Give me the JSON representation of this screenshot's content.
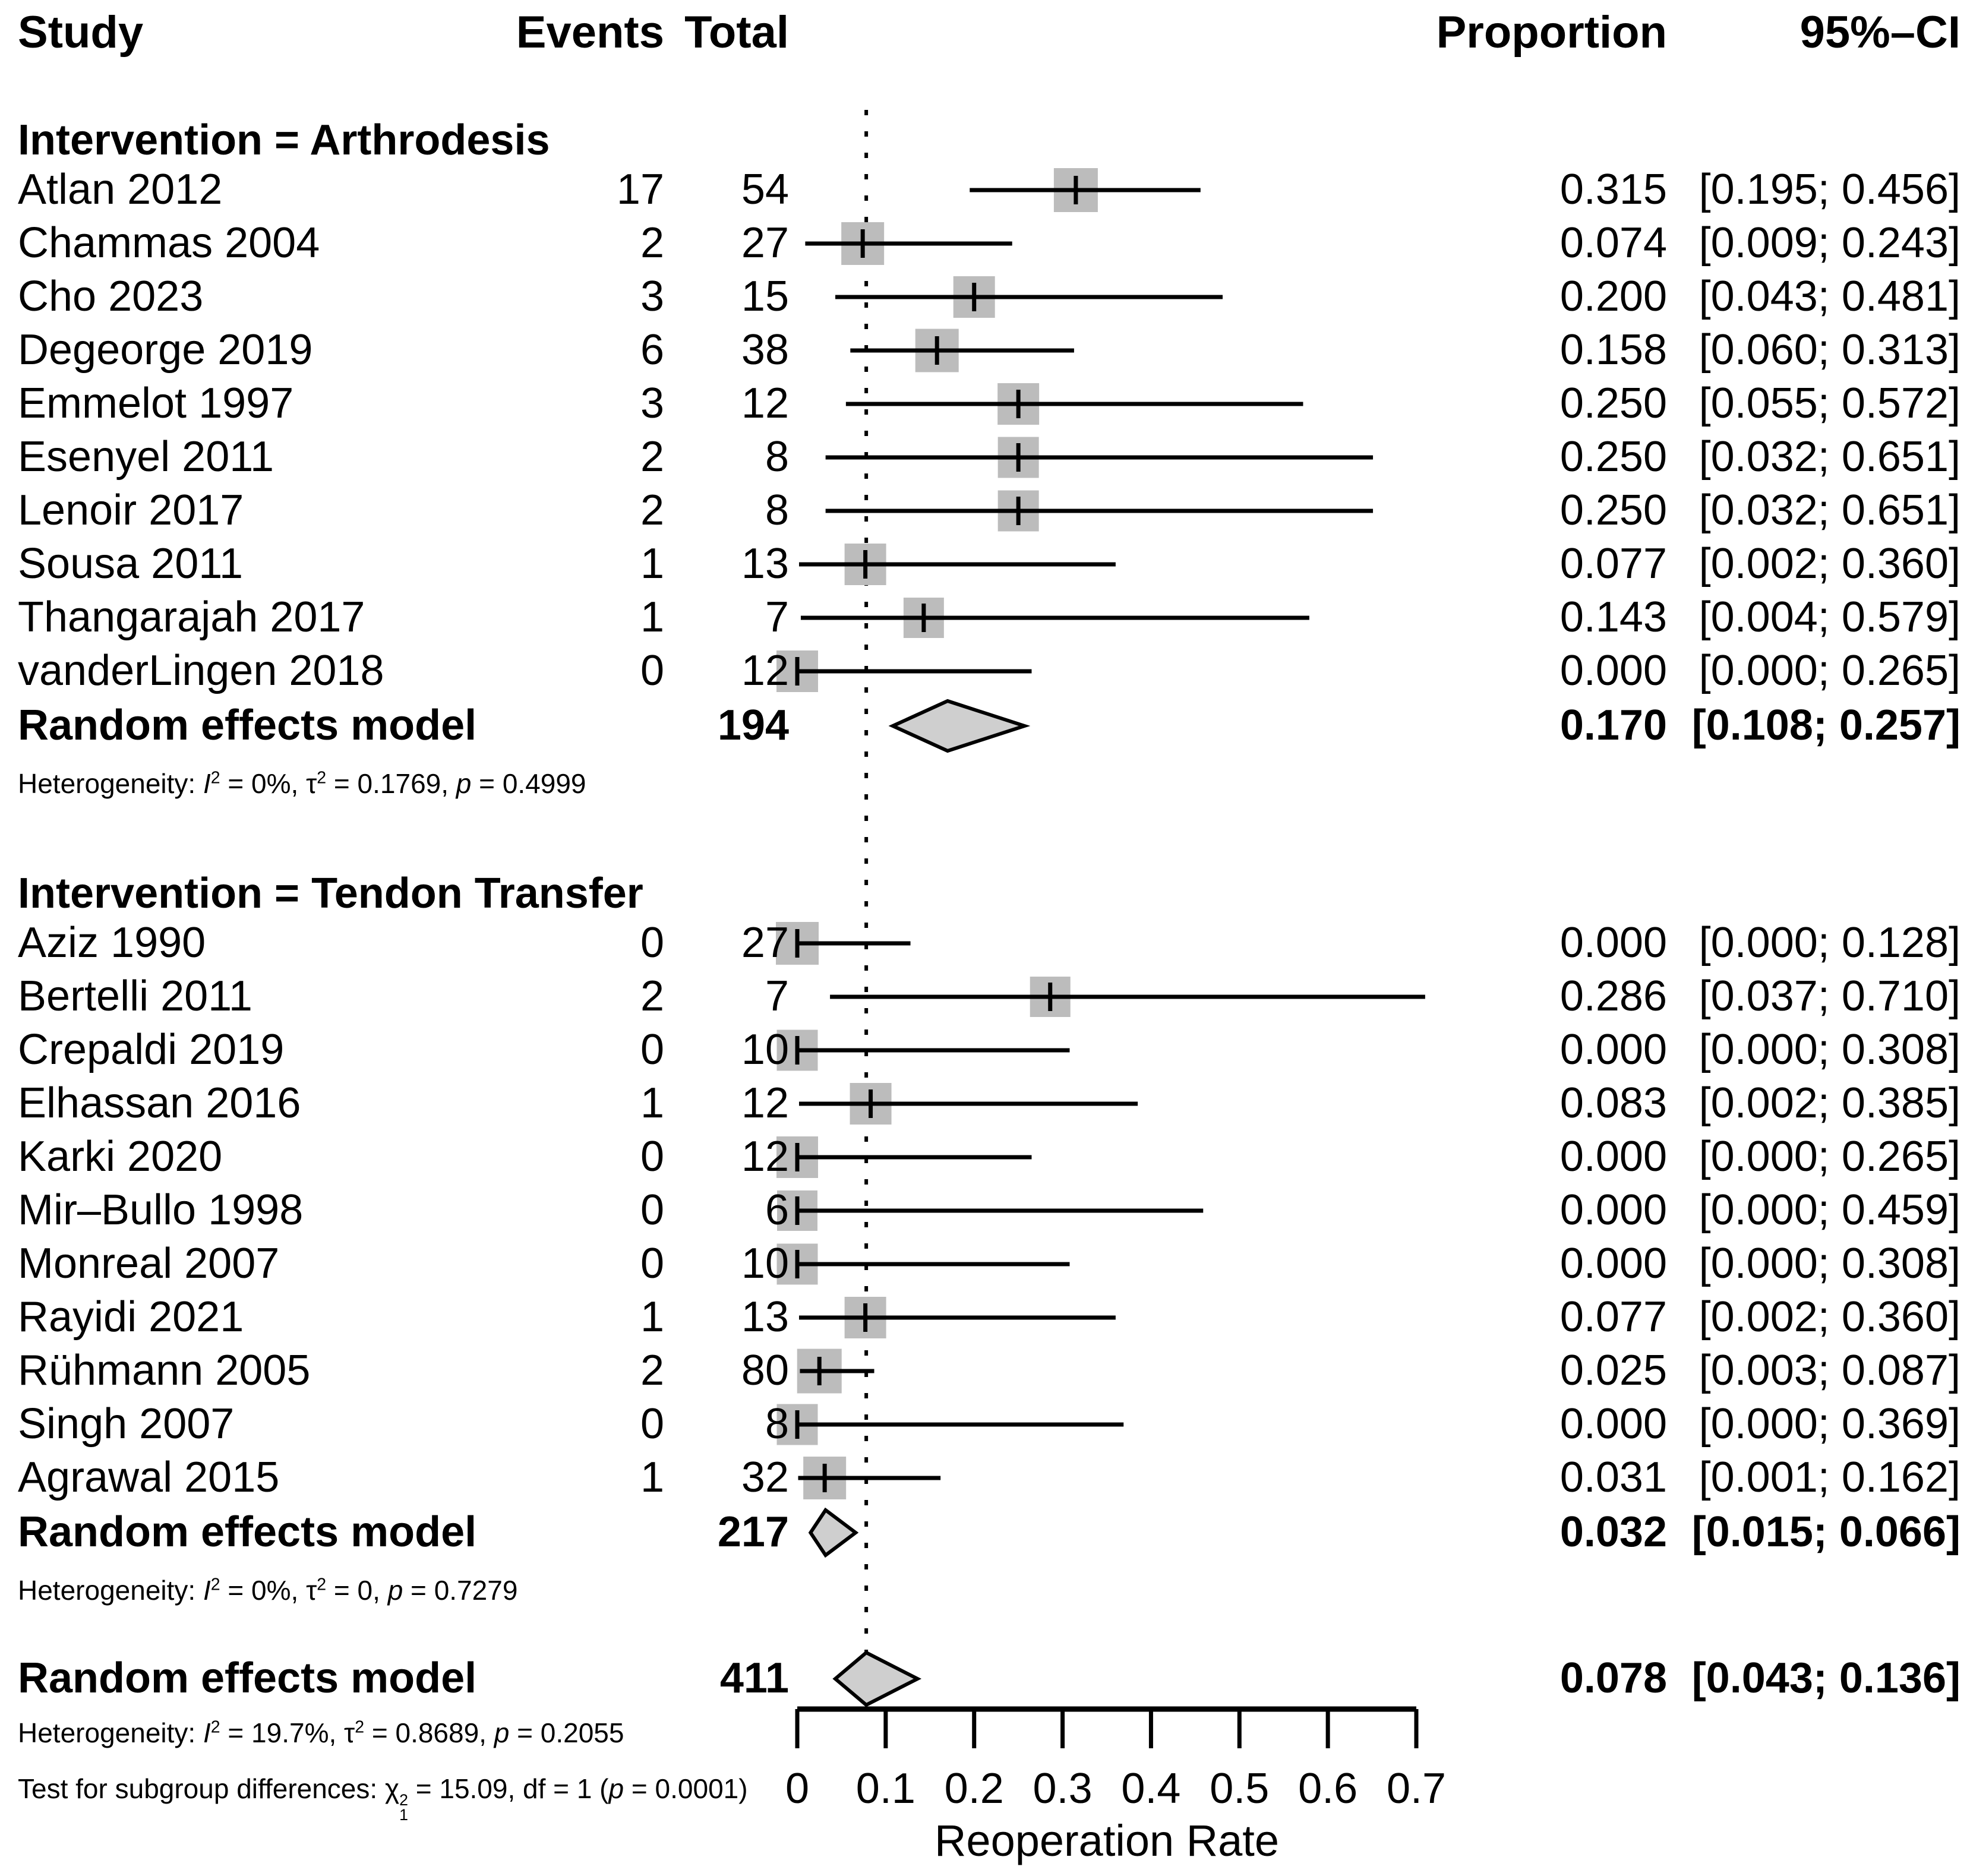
{
  "columns": {
    "study": "Study",
    "events": "Events",
    "total": "Total",
    "proportion": "Proportion",
    "ci": "95%–CI"
  },
  "chart_data": {
    "type": "forest",
    "xlabel": "Reoperation Rate",
    "xlim": [
      0,
      0.7
    ],
    "xticks": [
      "0",
      "0.1",
      "0.2",
      "0.3",
      "0.4",
      "0.5",
      "0.6",
      "0.7"
    ],
    "reference_line_value": 0.078,
    "marker_color": "#bcbcbc",
    "diamond_color": "#cfcfcf",
    "groups": [
      {
        "label": "Intervention = Arthrodesis",
        "studies": [
          {
            "study": "Atlan 2012",
            "events": "17",
            "total": "54",
            "proportion": 0.315,
            "ci_lower": 0.195,
            "ci_upper": 0.456,
            "proportion_text": "0.315",
            "ci_text": "[0.195; 0.456]",
            "marker_size": 74
          },
          {
            "study": "Chammas 2004",
            "events": "2",
            "total": "27",
            "proportion": 0.074,
            "ci_lower": 0.009,
            "ci_upper": 0.243,
            "proportion_text": "0.074",
            "ci_text": "[0.009; 0.243]",
            "marker_size": 72
          },
          {
            "study": "Cho 2023",
            "events": "3",
            "total": "15",
            "proportion": 0.2,
            "ci_lower": 0.043,
            "ci_upper": 0.481,
            "proportion_text": "0.200",
            "ci_text": "[0.043; 0.481]",
            "marker_size": 70
          },
          {
            "study": "Degeorge 2019",
            "events": "6",
            "total": "38",
            "proportion": 0.158,
            "ci_lower": 0.06,
            "ci_upper": 0.313,
            "proportion_text": "0.158",
            "ci_text": "[0.060; 0.313]",
            "marker_size": 73
          },
          {
            "study": "Emmelot 1997",
            "events": "3",
            "total": "12",
            "proportion": 0.25,
            "ci_lower": 0.055,
            "ci_upper": 0.572,
            "proportion_text": "0.250",
            "ci_text": "[0.055; 0.572]",
            "marker_size": 70
          },
          {
            "study": "Esenyel 2011",
            "events": "2",
            "total": "8",
            "proportion": 0.25,
            "ci_lower": 0.032,
            "ci_upper": 0.651,
            "proportion_text": "0.250",
            "ci_text": "[0.032; 0.651]",
            "marker_size": 69
          },
          {
            "study": "Lenoir 2017",
            "events": "2",
            "total": "8",
            "proportion": 0.25,
            "ci_lower": 0.032,
            "ci_upper": 0.651,
            "proportion_text": "0.250",
            "ci_text": "[0.032; 0.651]",
            "marker_size": 69
          },
          {
            "study": "Sousa 2011",
            "events": "1",
            "total": "13",
            "proportion": 0.077,
            "ci_lower": 0.002,
            "ci_upper": 0.36,
            "proportion_text": "0.077",
            "ci_text": "[0.002; 0.360]",
            "marker_size": 70
          },
          {
            "study": "Thangarajah 2017",
            "events": "1",
            "total": "7",
            "proportion": 0.143,
            "ci_lower": 0.004,
            "ci_upper": 0.579,
            "proportion_text": "0.143",
            "ci_text": "[0.004; 0.579]",
            "marker_size": 68
          },
          {
            "study": "vanderLingen 2018",
            "events": "0",
            "total": "12",
            "proportion": 0.0,
            "ci_lower": 0.0,
            "ci_upper": 0.265,
            "proportion_text": "0.000",
            "ci_text": "[0.000; 0.265]",
            "marker_size": 70
          }
        ],
        "summary": {
          "label": "Random effects model",
          "total": "194",
          "proportion": 0.17,
          "ci_lower": 0.108,
          "ci_upper": 0.257,
          "proportion_text": "0.170",
          "ci_text": "[0.108; 0.257]",
          "diamond_half_height": 42
        },
        "heterogeneity": {
          "prefix": "Heterogeneity:",
          "i2": "0%",
          "tau2": "0.1769",
          "p": "0.4999"
        }
      },
      {
        "label": "Intervention = Tendon Transfer",
        "studies": [
          {
            "study": "Aziz 1990",
            "events": "0",
            "total": "27",
            "proportion": 0.0,
            "ci_lower": 0.0,
            "ci_upper": 0.128,
            "proportion_text": "0.000",
            "ci_text": "[0.000; 0.128]",
            "marker_size": 72
          },
          {
            "study": "Bertelli 2011",
            "events": "2",
            "total": "7",
            "proportion": 0.286,
            "ci_lower": 0.037,
            "ci_upper": 0.71,
            "proportion_text": "0.286",
            "ci_text": "[0.037; 0.710]",
            "marker_size": 68
          },
          {
            "study": "Crepaldi 2019",
            "events": "0",
            "total": "10",
            "proportion": 0.0,
            "ci_lower": 0.0,
            "ci_upper": 0.308,
            "proportion_text": "0.000",
            "ci_text": "[0.000; 0.308]",
            "marker_size": 69
          },
          {
            "study": "Elhassan 2016",
            "events": "1",
            "total": "12",
            "proportion": 0.083,
            "ci_lower": 0.002,
            "ci_upper": 0.385,
            "proportion_text": "0.083",
            "ci_text": "[0.002; 0.385]",
            "marker_size": 70
          },
          {
            "study": "Karki 2020",
            "events": "0",
            "total": "12",
            "proportion": 0.0,
            "ci_lower": 0.0,
            "ci_upper": 0.265,
            "proportion_text": "0.000",
            "ci_text": "[0.000; 0.265]",
            "marker_size": 70
          },
          {
            "study": "Mir–Bullo 1998",
            "events": "0",
            "total": "6",
            "proportion": 0.0,
            "ci_lower": 0.0,
            "ci_upper": 0.459,
            "proportion_text": "0.000",
            "ci_text": "[0.000; 0.459]",
            "marker_size": 68
          },
          {
            "study": "Monreal 2007",
            "events": "0",
            "total": "10",
            "proportion": 0.0,
            "ci_lower": 0.0,
            "ci_upper": 0.308,
            "proportion_text": "0.000",
            "ci_text": "[0.000; 0.308]",
            "marker_size": 69
          },
          {
            "study": "Rayidi 2021",
            "events": "1",
            "total": "13",
            "proportion": 0.077,
            "ci_lower": 0.002,
            "ci_upper": 0.36,
            "proportion_text": "0.077",
            "ci_text": "[0.002; 0.360]",
            "marker_size": 70
          },
          {
            "study": "Rühmann 2005",
            "events": "2",
            "total": "80",
            "proportion": 0.025,
            "ci_lower": 0.003,
            "ci_upper": 0.087,
            "proportion_text": "0.025",
            "ci_text": "[0.003; 0.087]",
            "marker_size": 75
          },
          {
            "study": "Singh 2007",
            "events": "0",
            "total": "8",
            "proportion": 0.0,
            "ci_lower": 0.0,
            "ci_upper": 0.369,
            "proportion_text": "0.000",
            "ci_text": "[0.000; 0.369]",
            "marker_size": 69
          },
          {
            "study": "Agrawal 2015",
            "events": "1",
            "total": "32",
            "proportion": 0.031,
            "ci_lower": 0.001,
            "ci_upper": 0.162,
            "proportion_text": "0.031",
            "ci_text": "[0.001; 0.162]",
            "marker_size": 72
          }
        ],
        "summary": {
          "label": "Random effects model",
          "total": "217",
          "proportion": 0.032,
          "ci_lower": 0.015,
          "ci_upper": 0.066,
          "proportion_text": "0.032",
          "ci_text": "[0.015; 0.066]",
          "diamond_half_height": 38
        },
        "heterogeneity": {
          "prefix": "Heterogeneity:",
          "i2": "0%",
          "tau2": "0",
          "p": "0.7279"
        }
      }
    ],
    "overall": {
      "summary": {
        "label": "Random effects model",
        "total": "411",
        "proportion": 0.078,
        "ci_lower": 0.043,
        "ci_upper": 0.136,
        "proportion_text": "0.078",
        "ci_text": "[0.043; 0.136]",
        "diamond_half_height": 44
      },
      "heterogeneity": {
        "prefix": "Heterogeneity:",
        "i2": "19.7%",
        "tau2": "0.8689",
        "p": "0.2055"
      },
      "subgroup_test": {
        "prefix": "Test for subgroup differences:",
        "chi2": "15.09",
        "df": "1",
        "p": "0.0001"
      }
    }
  }
}
